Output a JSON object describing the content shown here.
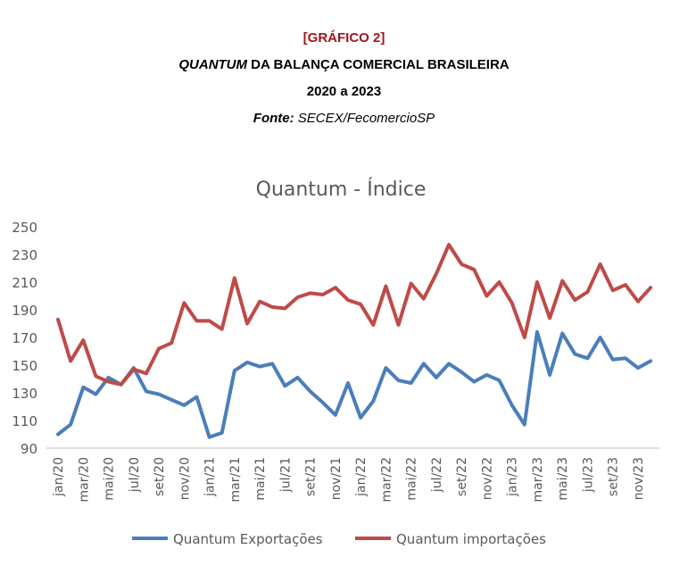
{
  "header": {
    "label": "[GRÁFICO 2]",
    "title_italic": "QUANTUM",
    "title_rest": " DA BALANÇA COMERCIAL BRASILEIRA",
    "period": "2020 a 2023",
    "source_label": "Fonte:",
    "source_value": " SECEX/FecomercioSP"
  },
  "colors": {
    "exports": "#4a7ebb",
    "imports": "#be4b48",
    "axis": "#595959",
    "text": "#595959"
  },
  "chart_data": {
    "type": "line",
    "title": "Quantum - Índice",
    "ylim": [
      90,
      250
    ],
    "yticks": [
      90,
      110,
      130,
      150,
      170,
      190,
      210,
      230,
      250
    ],
    "grid": false,
    "legend_position": "bottom",
    "categories": [
      "jan/20",
      "fev/20",
      "mar/20",
      "abr/20",
      "mai/20",
      "jun/20",
      "jul/20",
      "ago/20",
      "set/20",
      "out/20",
      "nov/20",
      "dez/20",
      "jan/21",
      "fev/21",
      "mar/21",
      "abr/21",
      "mai/21",
      "jun/21",
      "jul/21",
      "ago/21",
      "set/21",
      "out/21",
      "nov/21",
      "dez/21",
      "jan/22",
      "fev/22",
      "mar/22",
      "abr/22",
      "mai/22",
      "jun/22",
      "jul/22",
      "ago/22",
      "set/22",
      "out/22",
      "nov/22",
      "dez/22",
      "jan/23",
      "fev/23",
      "mar/23",
      "abr/23",
      "mai/23",
      "jun/23",
      "jul/23",
      "ago/23",
      "set/23",
      "out/23",
      "nov/23",
      "dez/23"
    ],
    "tick_labels": [
      "jan/20",
      "mar/20",
      "mai/20",
      "jul/20",
      "set/20",
      "nov/20",
      "jan/21",
      "mar/21",
      "mai/21",
      "jul/21",
      "set/21",
      "nov/21",
      "jan/22",
      "mar/22",
      "mai/22",
      "jul/22",
      "set/22",
      "nov/22",
      "jan/23",
      "mar/23",
      "mai/23",
      "jul/23",
      "set/23",
      "nov/23"
    ],
    "series": [
      {
        "name": "Quantum Exportações",
        "color": "#4a7ebb",
        "values": [
          100,
          107,
          134,
          129,
          141,
          136,
          148,
          131,
          129,
          125,
          121,
          127,
          98,
          101,
          146,
          152,
          149,
          151,
          135,
          141,
          131,
          123,
          114,
          137,
          112,
          124,
          148,
          139,
          137,
          151,
          141,
          151,
          145,
          138,
          143,
          139,
          121,
          107,
          174,
          143,
          173,
          158,
          155,
          170,
          154,
          155,
          148,
          153
        ]
      },
      {
        "name": "Quantum importações",
        "color": "#be4b48",
        "values": [
          183,
          153,
          168,
          142,
          138,
          136,
          147,
          144,
          162,
          166,
          195,
          182,
          182,
          176,
          213,
          180,
          196,
          192,
          191,
          199,
          202,
          201,
          206,
          197,
          194,
          179,
          207,
          179,
          209,
          198,
          216,
          237,
          223,
          219,
          200,
          210,
          195,
          170,
          210,
          184,
          211,
          197,
          203,
          223,
          204,
          208,
          196,
          206
        ]
      }
    ]
  }
}
